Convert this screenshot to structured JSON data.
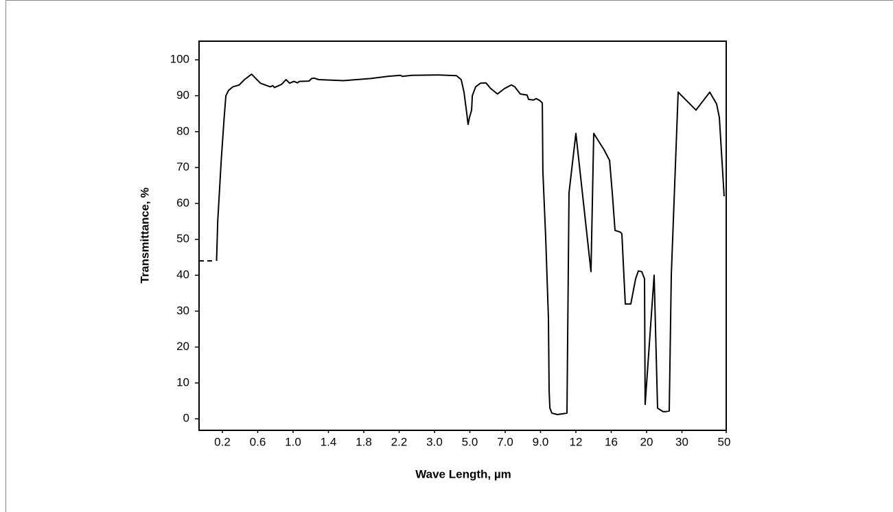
{
  "chart_data": {
    "type": "line",
    "xlabel": "Wave Length, µm",
    "ylabel": "Transmittance, %",
    "xlim": [
      0,
      50
    ],
    "xticks": [
      0.2,
      0.6,
      {
        "value": 1.0,
        "label": "1.0"
      },
      1.4,
      1.8,
      2.2,
      {
        "value": 3.0,
        "label": "3.0"
      },
      {
        "value": 5.0,
        "label": "5.0"
      },
      {
        "value": 7.0,
        "label": "7.0"
      },
      {
        "value": 9.0,
        "label": "9.0"
      },
      12,
      16,
      20,
      30,
      50
    ],
    "ylim": [
      -3.2,
      105.2
    ],
    "yticks": [
      0,
      10,
      20,
      30,
      40,
      50,
      60,
      70,
      80,
      90,
      100
    ],
    "grid": false,
    "series": [
      {
        "color": "#000000",
        "dash": false,
        "x": [
          0.15,
          0.16,
          0.19,
          0.22,
          0.24,
          0.27,
          0.32,
          0.39,
          0.45,
          0.53,
          0.63,
          0.74,
          0.77,
          0.79,
          0.87,
          0.92,
          0.96,
          1.01,
          1.05,
          1.07,
          1.18,
          1.21,
          1.24,
          1.29,
          1.57,
          1.88,
          2.07,
          2.23,
          2.27,
          2.49,
          3.27,
          4.24,
          4.51,
          4.67,
          4.83,
          4.9,
          4.98,
          5.1,
          5.14,
          5.33,
          5.6,
          5.91,
          6.18,
          6.56,
          6.96,
          7.35,
          7.54,
          7.85,
          8.24,
          8.32,
          8.6,
          8.75,
          8.95,
          9.15,
          9.2,
          9.44,
          9.67,
          9.73,
          9.79,
          9.96,
          10.43,
          10.89,
          11.24,
          11.42,
          12.0,
          13.71,
          14.02,
          15.18,
          15.81,
          16.12,
          16.43,
          17.05,
          17.2,
          17.59,
          18.21,
          18.76,
          19.07,
          19.46,
          19.77,
          19.84,
          22.14,
          23.11,
          24.66,
          25.44,
          26.41,
          26.99,
          28.93,
          36.36,
          42.56,
          45.66,
          46.9,
          49.07
        ],
        "values": [
          44,
          55,
          72,
          84,
          90,
          91.5,
          92.5,
          93,
          94.5,
          96,
          93.5,
          92.5,
          92.8,
          92.3,
          93.2,
          94.5,
          93.5,
          94,
          93.6,
          94,
          94.1,
          94.8,
          94.9,
          94.5,
          94.2,
          94.8,
          95.4,
          95.7,
          95.4,
          95.7,
          95.8,
          95.6,
          94.5,
          91,
          85,
          82,
          84,
          86,
          90,
          92.5,
          93.5,
          93.6,
          92,
          90.5,
          92,
          93,
          92.5,
          90.5,
          90.2,
          89,
          88.8,
          89.2,
          88.7,
          88,
          69,
          50,
          28,
          8,
          3,
          1.6,
          1.2,
          1.4,
          1.6,
          63,
          79.5,
          41,
          79.5,
          75,
          72,
          63,
          52.5,
          52,
          51.5,
          32,
          32,
          39,
          41.2,
          41,
          39,
          4,
          40,
          3,
          2,
          2,
          2.2,
          40,
          91,
          86,
          91,
          87.7,
          84,
          62
        ]
      },
      {
        "color": "#000000",
        "dash": true,
        "x": [
          0,
          0.14
        ],
        "values": [
          44,
          44
        ]
      }
    ]
  }
}
